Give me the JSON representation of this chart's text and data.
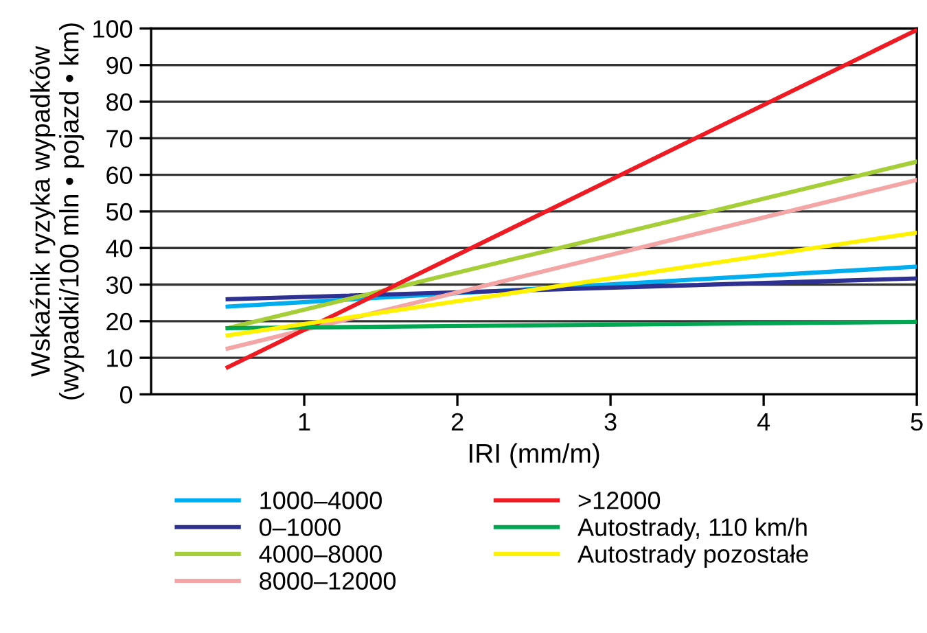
{
  "chart_data": {
    "type": "line",
    "xlabel": "IRI (mm/m)",
    "ylabel": "Wskaźnik ryzyka wypadków\n(wypadki/100 mln • pojazd • km)",
    "x": [
      0.5,
      5
    ],
    "xlim": [
      0,
      5
    ],
    "xticks": [
      1,
      2,
      3,
      4,
      5
    ],
    "ylim": [
      0,
      100
    ],
    "yticks": [
      0,
      10,
      20,
      30,
      40,
      50,
      60,
      70,
      80,
      90,
      100
    ],
    "grid": "y",
    "legend": "bottom",
    "marker": "none",
    "line_style": "solid",
    "series": [
      {
        "name": "1000–4000",
        "color": "#00aeef",
        "values": [
          24,
          34.9
        ]
      },
      {
        "name": "0–1000",
        "color": "#2e3192",
        "values": [
          26,
          31.7
        ]
      },
      {
        "name": "4000–8000",
        "color": "#a6ce39",
        "values": [
          18.1,
          63.6
        ]
      },
      {
        "name": "8000–12000",
        "color": "#f4a6a6",
        "values": [
          12.5,
          58.6
        ]
      },
      {
        "name": ">12000",
        "color": "#ed1c24",
        "values": [
          7.4,
          99.6
        ]
      },
      {
        "name": "Autostrady, 110 km/h",
        "color": "#00a651",
        "values": [
          18.1,
          19.8
        ]
      },
      {
        "name": "Autostrady pozostałe",
        "color": "#fff200",
        "values": [
          16.1,
          44.2
        ]
      }
    ]
  }
}
